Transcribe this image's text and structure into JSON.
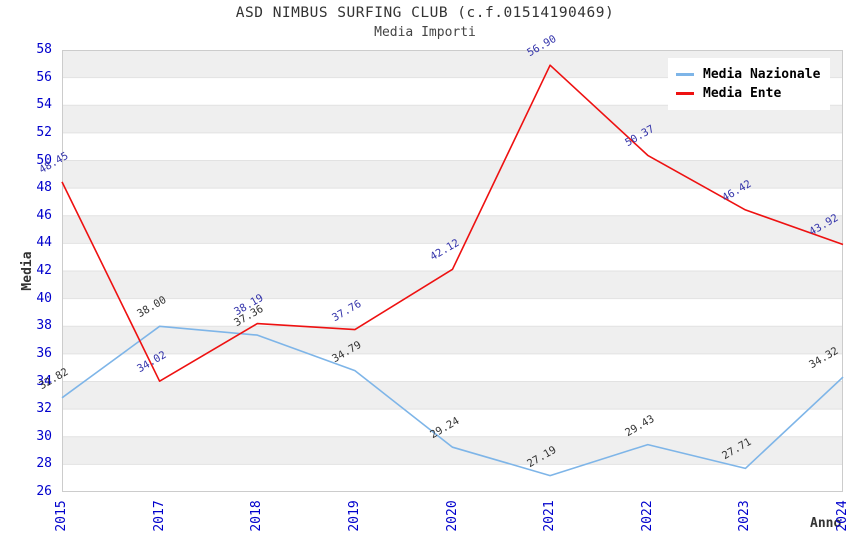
{
  "chart_data": {
    "type": "line",
    "title": "ASD NIMBUS SURFING CLUB (c.f.01514190469)",
    "subtitle": "Media Importi",
    "xlabel": "Anno",
    "ylabel": "Media",
    "categories": [
      "2015",
      "2017",
      "2018",
      "2019",
      "2020",
      "2021",
      "2022",
      "2023",
      "2024"
    ],
    "ylim": [
      26,
      58
    ],
    "ytick_step": 2,
    "grid": true,
    "legend_position": "top-right",
    "series": [
      {
        "name": "Media Nazionale",
        "color": "#7eb5e8",
        "label_color": "#333333",
        "values": [
          32.82,
          38.0,
          37.36,
          34.79,
          29.24,
          27.19,
          29.43,
          27.71,
          34.32
        ]
      },
      {
        "name": "Media Ente",
        "color": "#ee1111",
        "label_color": "#3333aa",
        "values": [
          48.45,
          34.02,
          38.19,
          37.76,
          42.12,
          56.9,
          50.37,
          46.42,
          43.92
        ]
      }
    ],
    "colors": {
      "axis_tick_label": "#0000cc",
      "axis_title": "#333333",
      "band_gray": "#efefef",
      "band_white": "#ffffff",
      "gridline": "#e2e2e2",
      "plot_border": "#cccccc",
      "background": "#ffffff"
    }
  }
}
